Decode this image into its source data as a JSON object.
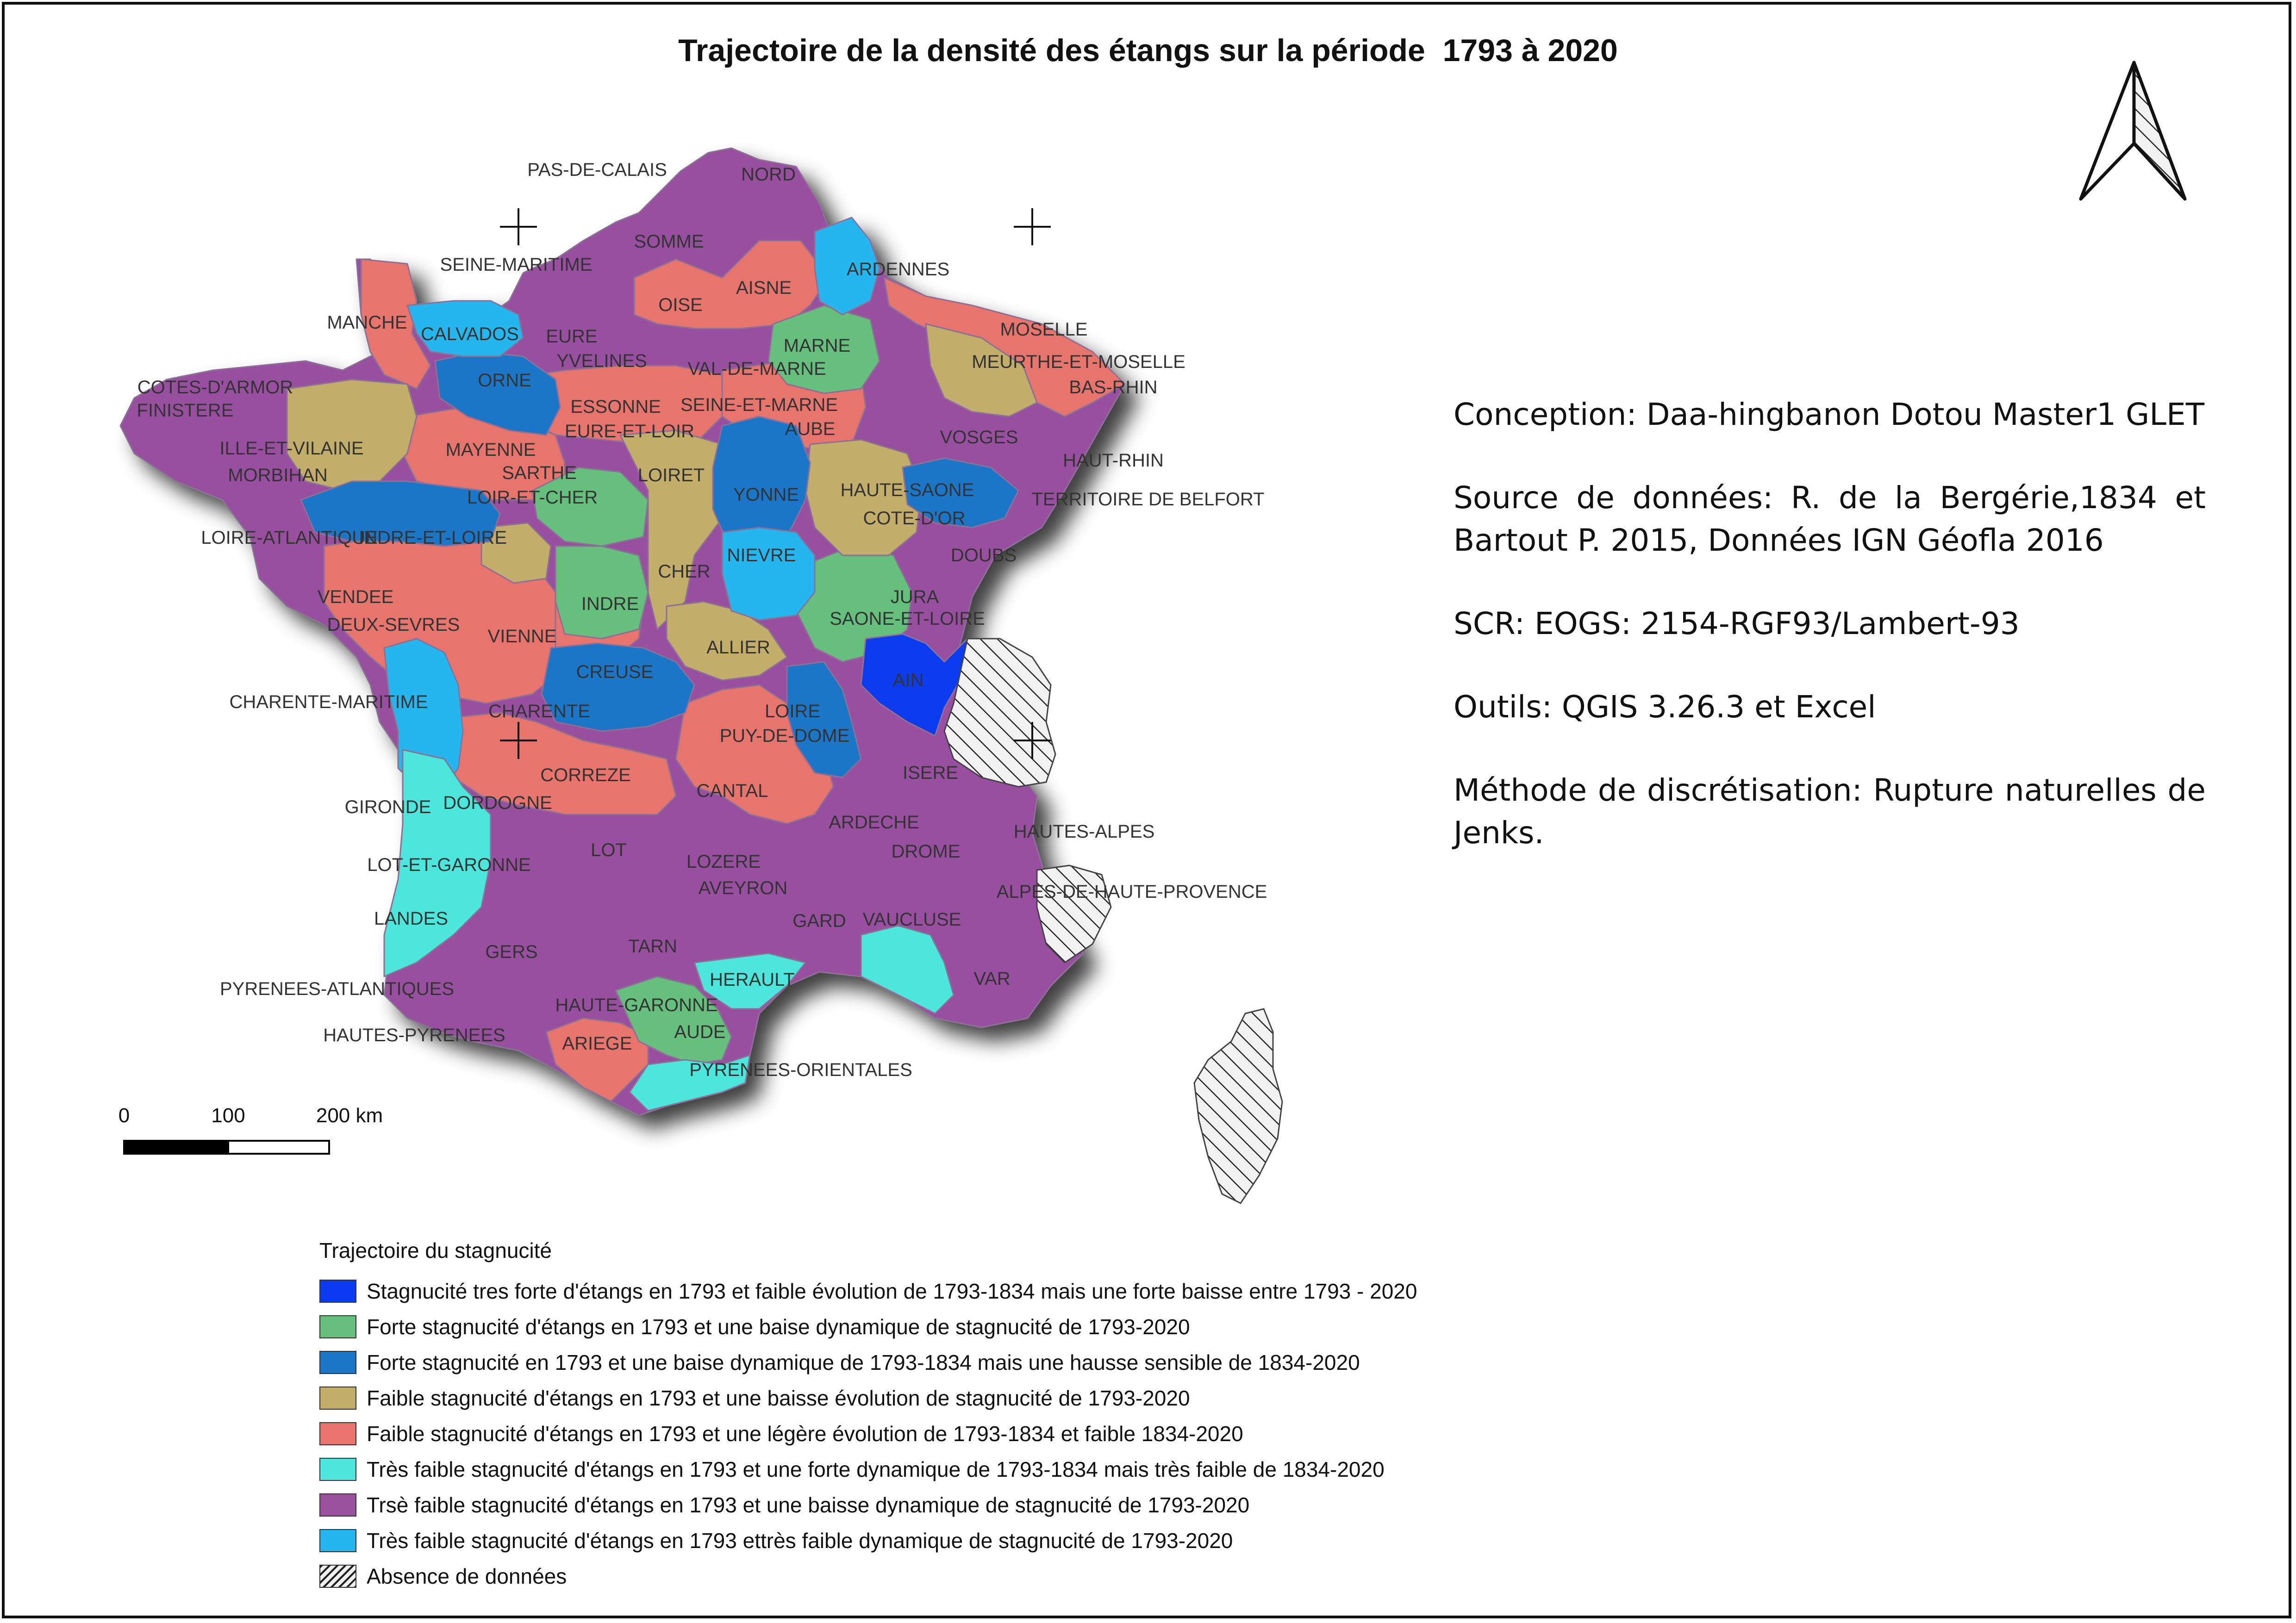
{
  "title": "Trajectoire de la densité des étangs sur la période  1793 à 2020",
  "info": {
    "conception": "Conception: Daa-hingbanon Dotou Master1 GLET",
    "source": "Source de données:  R. de la Bergérie,1834 et Bartout P. 2015, Données IGN Géofla 2016",
    "scr": "SCR: EOGS: 2154-RGF93/Lambert-93",
    "outils": "Outils: QGIS 3.26.3 et Excel",
    "methode": "Méthode de discrétisation: Rupture naturelles de Jenks."
  },
  "scale_bar": {
    "labels": [
      "0",
      "100",
      "200 km"
    ]
  },
  "colors": {
    "very_strong_blue": "#0a3bf0",
    "green": "#66bf7d",
    "medium_blue": "#1c76c8",
    "khaki": "#c2ad6b",
    "salmon": "#e8746d",
    "turquoise": "#4ee6dd",
    "purple": "#98509f",
    "light_blue": "#25b6ef"
  },
  "legend": {
    "title": "Trajectoire du stagnucité",
    "items": [
      {
        "color": "#0a3bf0",
        "label": "Stagnucité tres forte d'étangs en 1793 et faible  évolution de 1793-1834 mais une forte baisse entre 1793 - 2020"
      },
      {
        "color": "#66bf7d",
        "label": "Forte stagnucité d'étangs en 1793 et une baise dynamique de stagnucité de 1793-2020"
      },
      {
        "color": "#1c76c8",
        "label": "Forte stagnucité en 1793 et une baise dynamique de 1793-1834 mais une hausse sensible de 1834-2020"
      },
      {
        "color": "#c2ad6b",
        "label": "Faible stagnucité d'étangs en 1793 et une baisse évolution de stagnucité de 1793-2020"
      },
      {
        "color": "#e8746d",
        "label": "Faible stagnucité d'étangs en 1793 et une légère évolution de 1793-1834 et faible 1834-2020"
      },
      {
        "color": "#4ee6dd",
        "label": "Très faible stagnucité d'étangs en 1793 et une forte dynamique de 1793-1834 mais très faible de 1834-2020"
      },
      {
        "color": "#98509f",
        "label": "Trsè faible stagnucité d'étangs en 1793 et une baisse dynamique de stagnucité de 1793-2020"
      },
      {
        "color": "#25b6ef",
        "label": "Très faible stagnucité d'étangs en 1793 ettrès faible dynamique de stagnucité de 1793-2020"
      },
      {
        "color": "hatch",
        "label": "Absence de données"
      }
    ]
  },
  "departments": [
    "PAS-DE-CALAIS",
    "NORD",
    "SOMME",
    "SEINE-MARITIME",
    "AISNE",
    "ARDENNES",
    "OISE",
    "MANCHE",
    "CALVADOS",
    "EURE",
    "MARNE",
    "MOSELLE",
    "YVELINES",
    "VAL-DE-MARNE",
    "MEURTHE-ET-MOSELLE",
    "COTES-D'ARMOR",
    "ORNE",
    "BAS-RHIN",
    "FINISTERE",
    "ESSONNE",
    "SEINE-ET-MARNE",
    "EURE-ET-LOIR",
    "AUBE",
    "VOSGES",
    "ILLE-ET-VILAINE",
    "MAYENNE",
    "HAUT-RHIN",
    "MORBIHAN",
    "SARTHE",
    "LOIRET",
    "YONNE",
    "HAUTE-SAONE",
    "LOIR-ET-CHER",
    "TERRITOIRE DE BELFORT",
    "COTE-D'OR",
    "LOIRE-ATLANTIQUE",
    "INDRE-ET-LOIRE",
    "NIEVRE",
    "DOUBS",
    "CHER",
    "VENDEE",
    "INDRE",
    "JURA",
    "SAONE-ET-LOIRE",
    "DEUX-SEVRES",
    "VIENNE",
    "ALLIER",
    "AIN",
    "CREUSE",
    "CHARENTE-MARITIME",
    "CHARENTE",
    "LOIRE",
    "PUY-DE-DOME",
    "ISERE",
    "CORREZE",
    "CANTAL",
    "GIRONDE",
    "DORDOGNE",
    "ARDECHE",
    "HAUTES-ALPES",
    "DROME",
    "LOT",
    "LOT-ET-GARONNE",
    "LOZERE",
    "AVEYRON",
    "ALPES-DE-HAUTE-PROVENCE",
    "LANDES",
    "GARD",
    "VAUCLUSE",
    "GERS",
    "TARN",
    "HERAULT",
    "VAR",
    "PYRENEES-ATLANTIQUES",
    "HAUTE-GARONNE",
    "AUDE",
    "HAUTES-PYRENEES",
    "ARIEGE",
    "PYRENEES-ORIENTALES"
  ]
}
